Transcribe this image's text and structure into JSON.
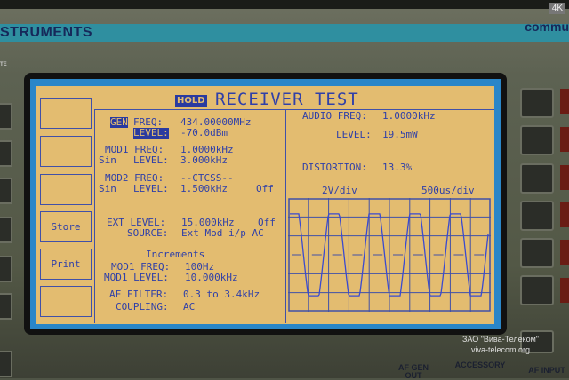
{
  "hardware": {
    "brand_left": "STRUMENTS",
    "brand_right": "commu",
    "badge": "4K",
    "side_label": "TE",
    "af_gen_out": "AF GEN\nOUT",
    "accessory": "ACCESSORY",
    "af_input": "AF INPUT"
  },
  "watermark": {
    "company": "ЗАО \"Вива-Телеком\"",
    "url": "viva-telecom.org"
  },
  "screen": {
    "hold": "HOLD",
    "title": "RECEIVER TEST",
    "softkeys": [
      "",
      "",
      "",
      "Store",
      "Print",
      ""
    ],
    "gen": {
      "gen_label": "GEN",
      "freq_label": "FREQ:",
      "freq": "434.00000MHz",
      "level_label": "LEVEL:",
      "level": "-70.0dBm"
    },
    "mod1": {
      "freq_label": "MOD1 FREQ:",
      "freq": "1.0000kHz",
      "shape": "Sin",
      "level_label": "LEVEL:",
      "level": "3.000kHz"
    },
    "mod2": {
      "freq_label": "MOD2 FREQ:",
      "freq": "--CTCSS--",
      "shape": "Sin",
      "level_label": "LEVEL:",
      "level": "1.500kHz",
      "state": "Off"
    },
    "ext": {
      "level_label": "EXT LEVEL:",
      "level": "15.000kHz",
      "state": "Off",
      "source_label": "SOURCE:",
      "source": "Ext Mod i/p AC"
    },
    "increments": {
      "title": "Increments",
      "mod1_freq_label": "MOD1 FREQ:",
      "mod1_freq": "100Hz",
      "mod1_level_label": "MOD1 LEVEL:",
      "mod1_level": "10.000kHz"
    },
    "af": {
      "filter_label": "AF FILTER:",
      "filter": "0.3 to 3.4kHz",
      "coupling_label": "COUPLING:",
      "coupling": "AC"
    },
    "audio": {
      "freq_label": "AUDIO FREQ:",
      "freq": "1.0000kHz",
      "level_label": "LEVEL:",
      "level": "19.5mW",
      "distortion_label": "DISTORTION:",
      "distortion": "13.3%"
    },
    "scope": {
      "vdiv": "2V/div",
      "tdiv": "500us/div",
      "trace_color": "#3a4ad0"
    }
  },
  "colors": {
    "screen_bg": "#e3bc70",
    "screen_text": "#3040a8",
    "frame": "#2a86c8"
  }
}
